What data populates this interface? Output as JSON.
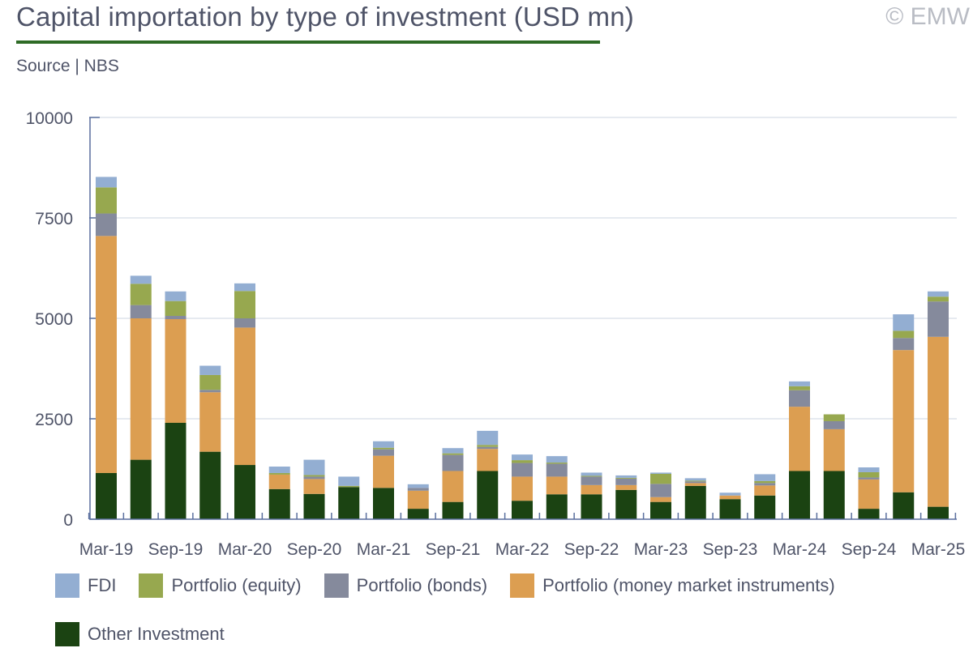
{
  "header": {
    "title": "Capital importation by type of investment (USD mn)",
    "copyright": "© EMW",
    "source": "Source | NBS"
  },
  "colors": {
    "fdi": "#93aed2",
    "equity": "#97a84f",
    "bonds": "#858a9c",
    "money_market": "#dc9e51",
    "other": "#1b4312",
    "gridline": "#dde3ec",
    "axis": "#5a6f9e",
    "title_rule": "#2e6b26"
  },
  "chart_data": {
    "type": "bar",
    "stacked": true,
    "ylim": [
      0,
      10000
    ],
    "yticks": [
      0,
      2500,
      5000,
      7500,
      10000
    ],
    "grid": true,
    "legend_position": "bottom",
    "x_tick_labels": [
      "Mar-19",
      "Sep-19",
      "Mar-20",
      "Sep-20",
      "Mar-21",
      "Sep-21",
      "Mar-22",
      "Sep-22",
      "Mar-23",
      "Sep-23",
      "Mar-24",
      "Sep-24",
      "Mar-25"
    ],
    "categories": [
      "Mar-19",
      "Jun-19",
      "Sep-19",
      "Dec-19",
      "Mar-20",
      "Jun-20",
      "Sep-20",
      "Dec-20",
      "Mar-21",
      "Jun-21",
      "Sep-21",
      "Dec-21",
      "Mar-22",
      "Jun-22",
      "Sep-22",
      "Dec-22",
      "Mar-23",
      "Jun-23",
      "Sep-23",
      "Dec-23",
      "Mar-24",
      "Jun-24",
      "Sep-24",
      "Dec-24",
      "Mar-25"
    ],
    "series": [
      {
        "name": "Other Investment",
        "key": "other",
        "values": [
          1150,
          1480,
          2400,
          1680,
          1350,
          750,
          630,
          800,
          780,
          260,
          430,
          1200,
          460,
          620,
          620,
          730,
          430,
          830,
          500,
          590,
          1200,
          1200,
          260,
          670,
          310
        ]
      },
      {
        "name": "Portfolio (money market instruments)",
        "key": "money_market",
        "values": [
          5900,
          3520,
          2580,
          1480,
          3420,
          360,
          370,
          0,
          800,
          450,
          770,
          550,
          600,
          440,
          230,
          120,
          120,
          70,
          90,
          250,
          1600,
          1040,
          730,
          3540,
          4230
        ]
      },
      {
        "name": "Portfolio (bonds)",
        "key": "bonds",
        "values": [
          560,
          330,
          80,
          60,
          230,
          0,
          60,
          0,
          160,
          70,
          400,
          50,
          340,
          320,
          210,
          160,
          330,
          40,
          0,
          60,
          410,
          200,
          50,
          300,
          880
        ]
      },
      {
        "name": "Portfolio (equity)",
        "key": "equity",
        "values": [
          650,
          530,
          370,
          370,
          680,
          40,
          40,
          30,
          40,
          0,
          40,
          50,
          70,
          30,
          20,
          20,
          250,
          20,
          0,
          50,
          100,
          170,
          130,
          180,
          120
        ]
      },
      {
        "name": "FDI",
        "key": "fdi",
        "values": [
          260,
          200,
          240,
          230,
          190,
          160,
          380,
          230,
          160,
          90,
          130,
          350,
          140,
          160,
          80,
          60,
          30,
          60,
          70,
          170,
          120,
          0,
          120,
          410,
          130
        ]
      }
    ],
    "legend_order": [
      "fdi",
      "equity",
      "bonds",
      "money_market",
      "other"
    ]
  }
}
